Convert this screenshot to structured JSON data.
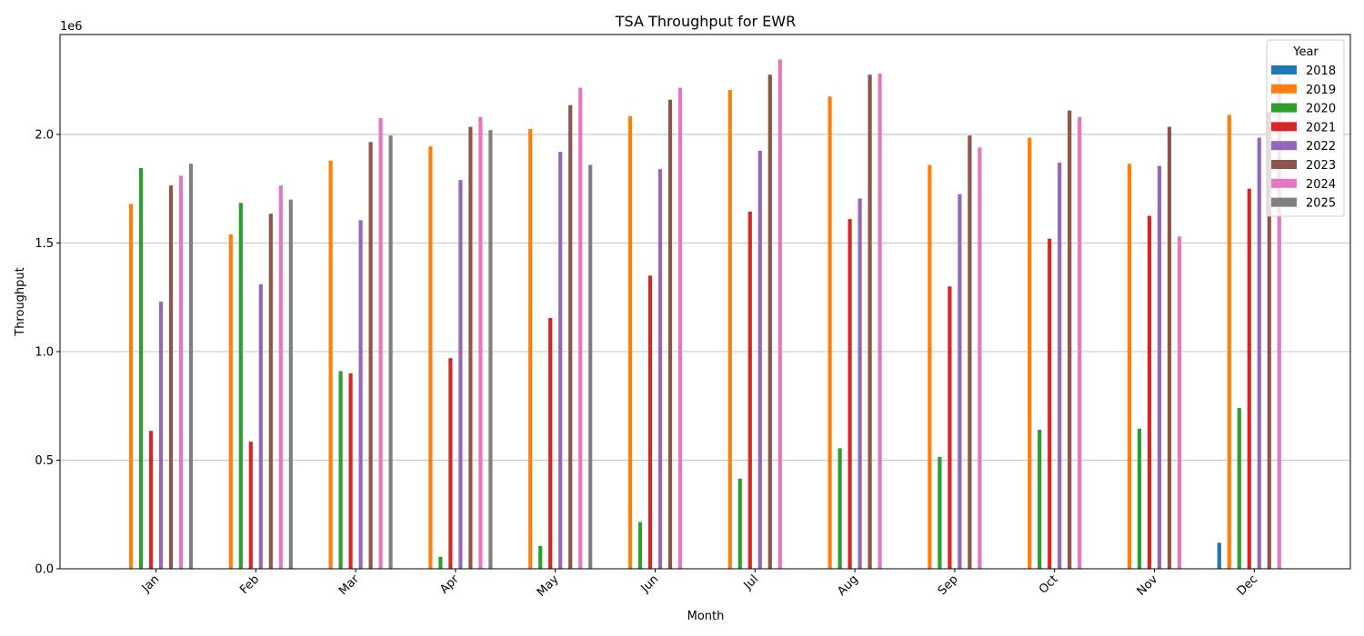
{
  "chart_data": {
    "type": "bar",
    "title": "TSA Throughput for EWR",
    "xlabel": "Month",
    "ylabel": "Throughput",
    "y_offset_label": "1e6",
    "ylim": [
      0,
      2460000
    ],
    "yticks": [
      0,
      500000,
      1000000,
      1500000,
      2000000
    ],
    "ytick_labels": [
      "0.0",
      "0.5",
      "1.0",
      "1.5",
      "2.0"
    ],
    "grid": true,
    "legend_title": "Year",
    "legend_position": "top-right",
    "categories": [
      "Jan",
      "Feb",
      "Mar",
      "Apr",
      "May",
      "Jun",
      "Jul",
      "Aug",
      "Sep",
      "Oct",
      "Nov",
      "Dec"
    ],
    "series": [
      {
        "name": "2018",
        "color": "#1f77b4",
        "values": [
          null,
          null,
          null,
          null,
          null,
          null,
          null,
          null,
          null,
          null,
          null,
          120000
        ]
      },
      {
        "name": "2019",
        "color": "#ff7f0e",
        "values": [
          1680000,
          1540000,
          1880000,
          1945000,
          2025000,
          2085000,
          2205000,
          2175000,
          1860000,
          1985000,
          1865000,
          2090000
        ]
      },
      {
        "name": "2020",
        "color": "#2ca02c",
        "values": [
          1845000,
          1685000,
          910000,
          55000,
          105000,
          215000,
          415000,
          555000,
          515000,
          640000,
          645000,
          740000
        ]
      },
      {
        "name": "2021",
        "color": "#d62728",
        "values": [
          635000,
          585000,
          900000,
          970000,
          1155000,
          1350000,
          1645000,
          1610000,
          1300000,
          1520000,
          1625000,
          1750000
        ]
      },
      {
        "name": "2022",
        "color": "#9467bd",
        "values": [
          1230000,
          1310000,
          1605000,
          1790000,
          1920000,
          1840000,
          1925000,
          1705000,
          1725000,
          1870000,
          1855000,
          1985000
        ]
      },
      {
        "name": "2023",
        "color": "#8c564b",
        "values": [
          1765000,
          1635000,
          1965000,
          2035000,
          2135000,
          2160000,
          2275000,
          2275000,
          1995000,
          2110000,
          2035000,
          2105000
        ]
      },
      {
        "name": "2024",
        "color": "#e377c2",
        "values": [
          1810000,
          1765000,
          2075000,
          2080000,
          2215000,
          2215000,
          2345000,
          2280000,
          1940000,
          2080000,
          1530000,
          2270000
        ]
      },
      {
        "name": "2025",
        "color": "#7f7f7f",
        "values": [
          1865000,
          1700000,
          1995000,
          2020000,
          1860000,
          null,
          null,
          null,
          null,
          null,
          null,
          null
        ]
      }
    ]
  }
}
